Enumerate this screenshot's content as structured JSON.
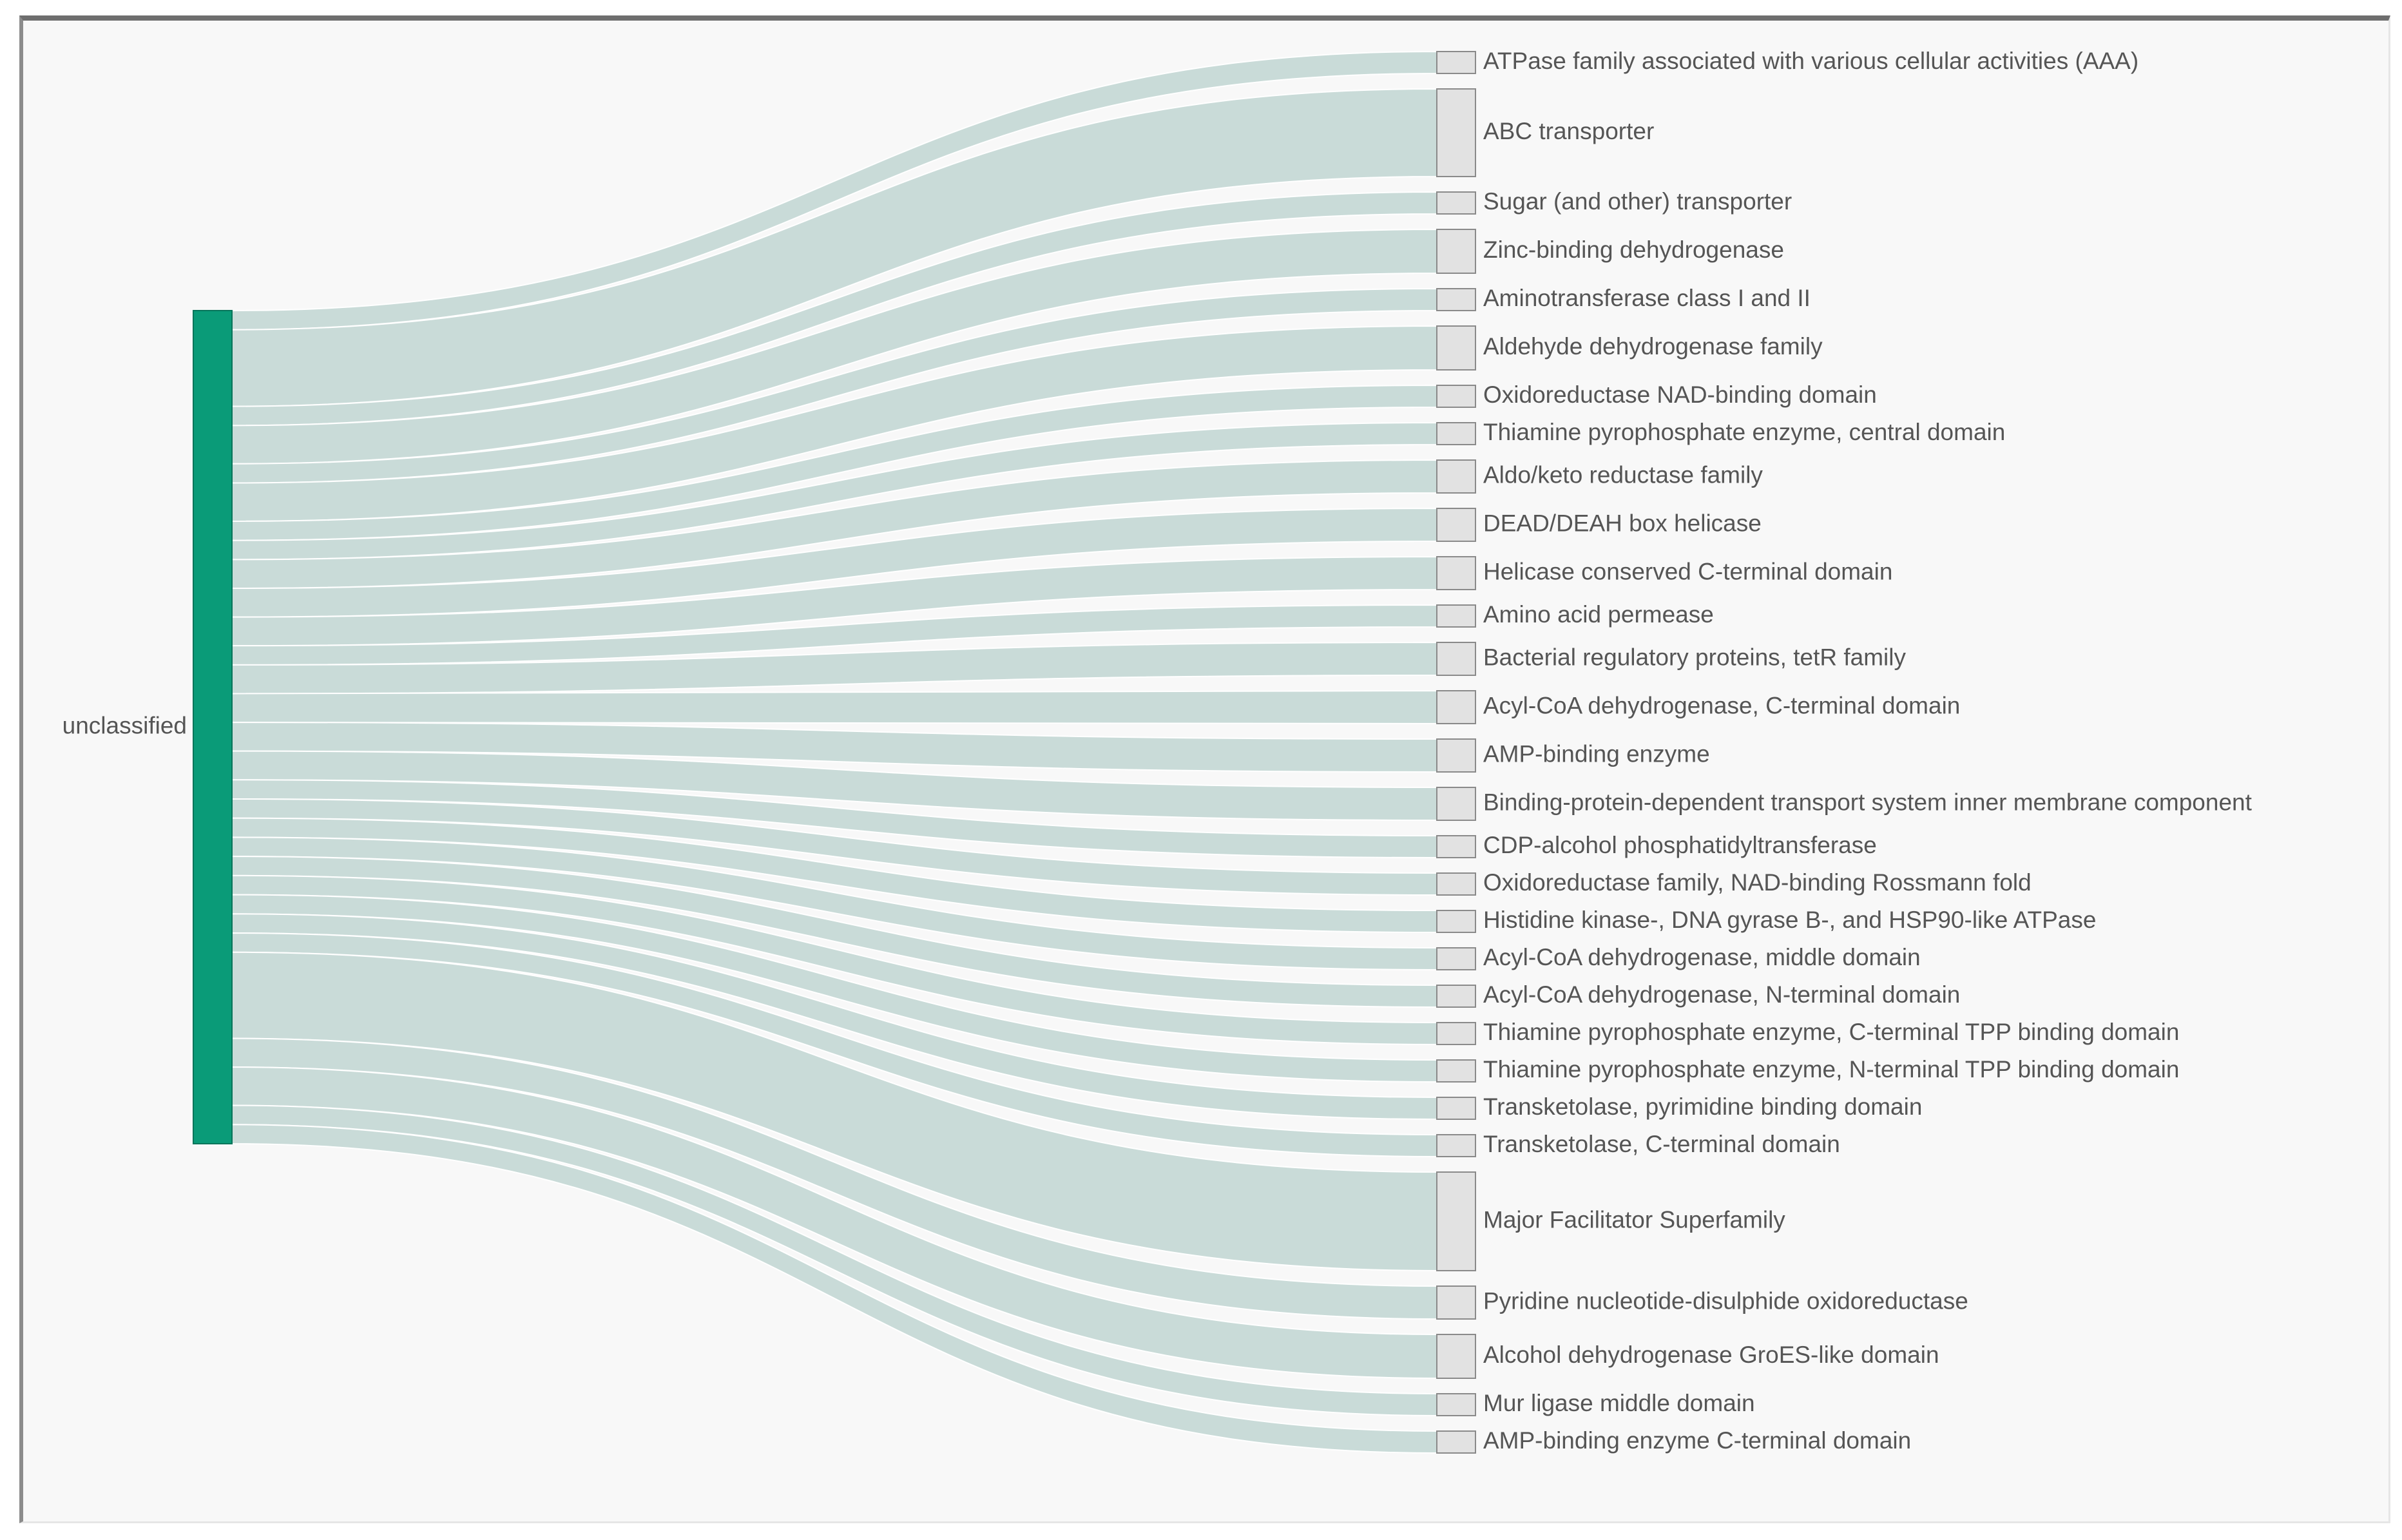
{
  "diagram": {
    "type": "sankey",
    "colors": {
      "source_node": "#0a9b78",
      "source_node_border": "#06755a",
      "link": "#c6d9d6",
      "target_node": "#e2e2e2",
      "target_node_border": "#8a8a8a",
      "label": "#555555",
      "background": "#f8f8f8"
    },
    "source": {
      "label": "unclassified"
    },
    "targets": [
      {
        "label": "ATPase family associated with various cellular activities (AAA)",
        "value": 1
      },
      {
        "label": "ABC transporter",
        "value": 4
      },
      {
        "label": "Sugar (and other) transporter",
        "value": 1
      },
      {
        "label": "Zinc-binding dehydrogenase",
        "value": 2
      },
      {
        "label": "Aminotransferase class I and II",
        "value": 1
      },
      {
        "label": "Aldehyde dehydrogenase family",
        "value": 2
      },
      {
        "label": "Oxidoreductase NAD-binding domain",
        "value": 1
      },
      {
        "label": "Thiamine pyrophosphate enzyme, central domain",
        "value": 1
      },
      {
        "label": "Aldo/keto reductase family",
        "value": 1.5
      },
      {
        "label": "DEAD/DEAH box helicase",
        "value": 1.5
      },
      {
        "label": "Helicase conserved C-terminal domain",
        "value": 1.5
      },
      {
        "label": "Amino acid permease",
        "value": 1
      },
      {
        "label": "Bacterial regulatory proteins, tetR family",
        "value": 1.5
      },
      {
        "label": "Acyl-CoA dehydrogenase, C-terminal domain",
        "value": 1.5
      },
      {
        "label": "AMP-binding enzyme",
        "value": 1.5
      },
      {
        "label": "Binding-protein-dependent transport system inner membrane component",
        "value": 1.5
      },
      {
        "label": "CDP-alcohol phosphatidyltransferase",
        "value": 1
      },
      {
        "label": "Oxidoreductase family, NAD-binding Rossmann fold",
        "value": 1
      },
      {
        "label": "Histidine kinase-, DNA gyrase B-, and HSP90-like ATPase",
        "value": 1
      },
      {
        "label": "Acyl-CoA dehydrogenase, middle domain",
        "value": 1
      },
      {
        "label": "Acyl-CoA dehydrogenase, N-terminal domain",
        "value": 1
      },
      {
        "label": "Thiamine pyrophosphate enzyme, C-terminal TPP binding domain",
        "value": 1
      },
      {
        "label": "Thiamine pyrophosphate enzyme, N-terminal TPP binding domain",
        "value": 1
      },
      {
        "label": "Transketolase, pyrimidine binding domain",
        "value": 1
      },
      {
        "label": "Transketolase, C-terminal domain",
        "value": 1
      },
      {
        "label": "Major Facilitator Superfamily",
        "value": 4.5
      },
      {
        "label": "Pyridine nucleotide-disulphide oxidoreductase",
        "value": 1.5
      },
      {
        "label": "Alcohol dehydrogenase GroES-like domain",
        "value": 2
      },
      {
        "label": "Mur ligase middle domain",
        "value": 1
      },
      {
        "label": "AMP-binding enzyme C-terminal domain",
        "value": 1
      }
    ]
  }
}
